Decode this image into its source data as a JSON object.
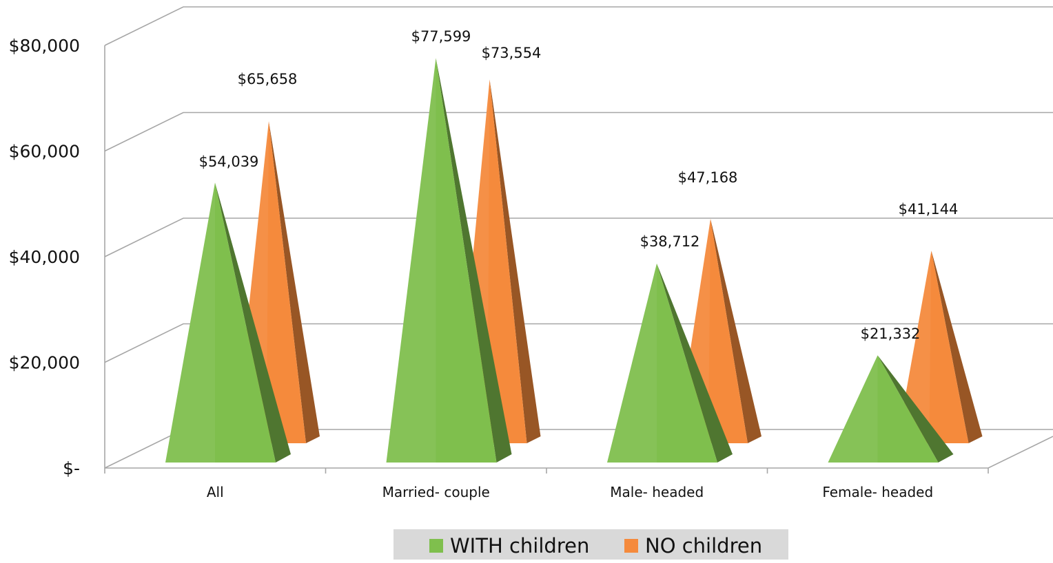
{
  "chart_data": {
    "type": "bar",
    "bar_shape": "3d-pyramid",
    "categories": [
      "All",
      "Married- couple",
      "Male- headed",
      "Female- headed"
    ],
    "series": [
      {
        "name": "WITH children",
        "color": "#7fbf4d",
        "values": [
          54039,
          77599,
          38712,
          21332
        ],
        "labels": [
          "$54,039",
          "$77,599",
          "$38,712",
          "$21,332"
        ]
      },
      {
        "name": "NO children",
        "color": "#f58a3c",
        "values": [
          65658,
          73554,
          47168,
          41144
        ],
        "labels": [
          "$65,658",
          "$73,554",
          "$47,168",
          "$41,144"
        ]
      }
    ],
    "ylim": [
      0,
      80000
    ],
    "yticks": [
      0,
      20000,
      40000,
      60000,
      80000
    ],
    "ytick_labels": [
      "$-",
      "$20,000",
      "$40,000",
      "$60,000",
      "$80,000"
    ],
    "grid": true,
    "legend": "bottom-center",
    "title": "",
    "xlabel": "",
    "ylabel": ""
  }
}
